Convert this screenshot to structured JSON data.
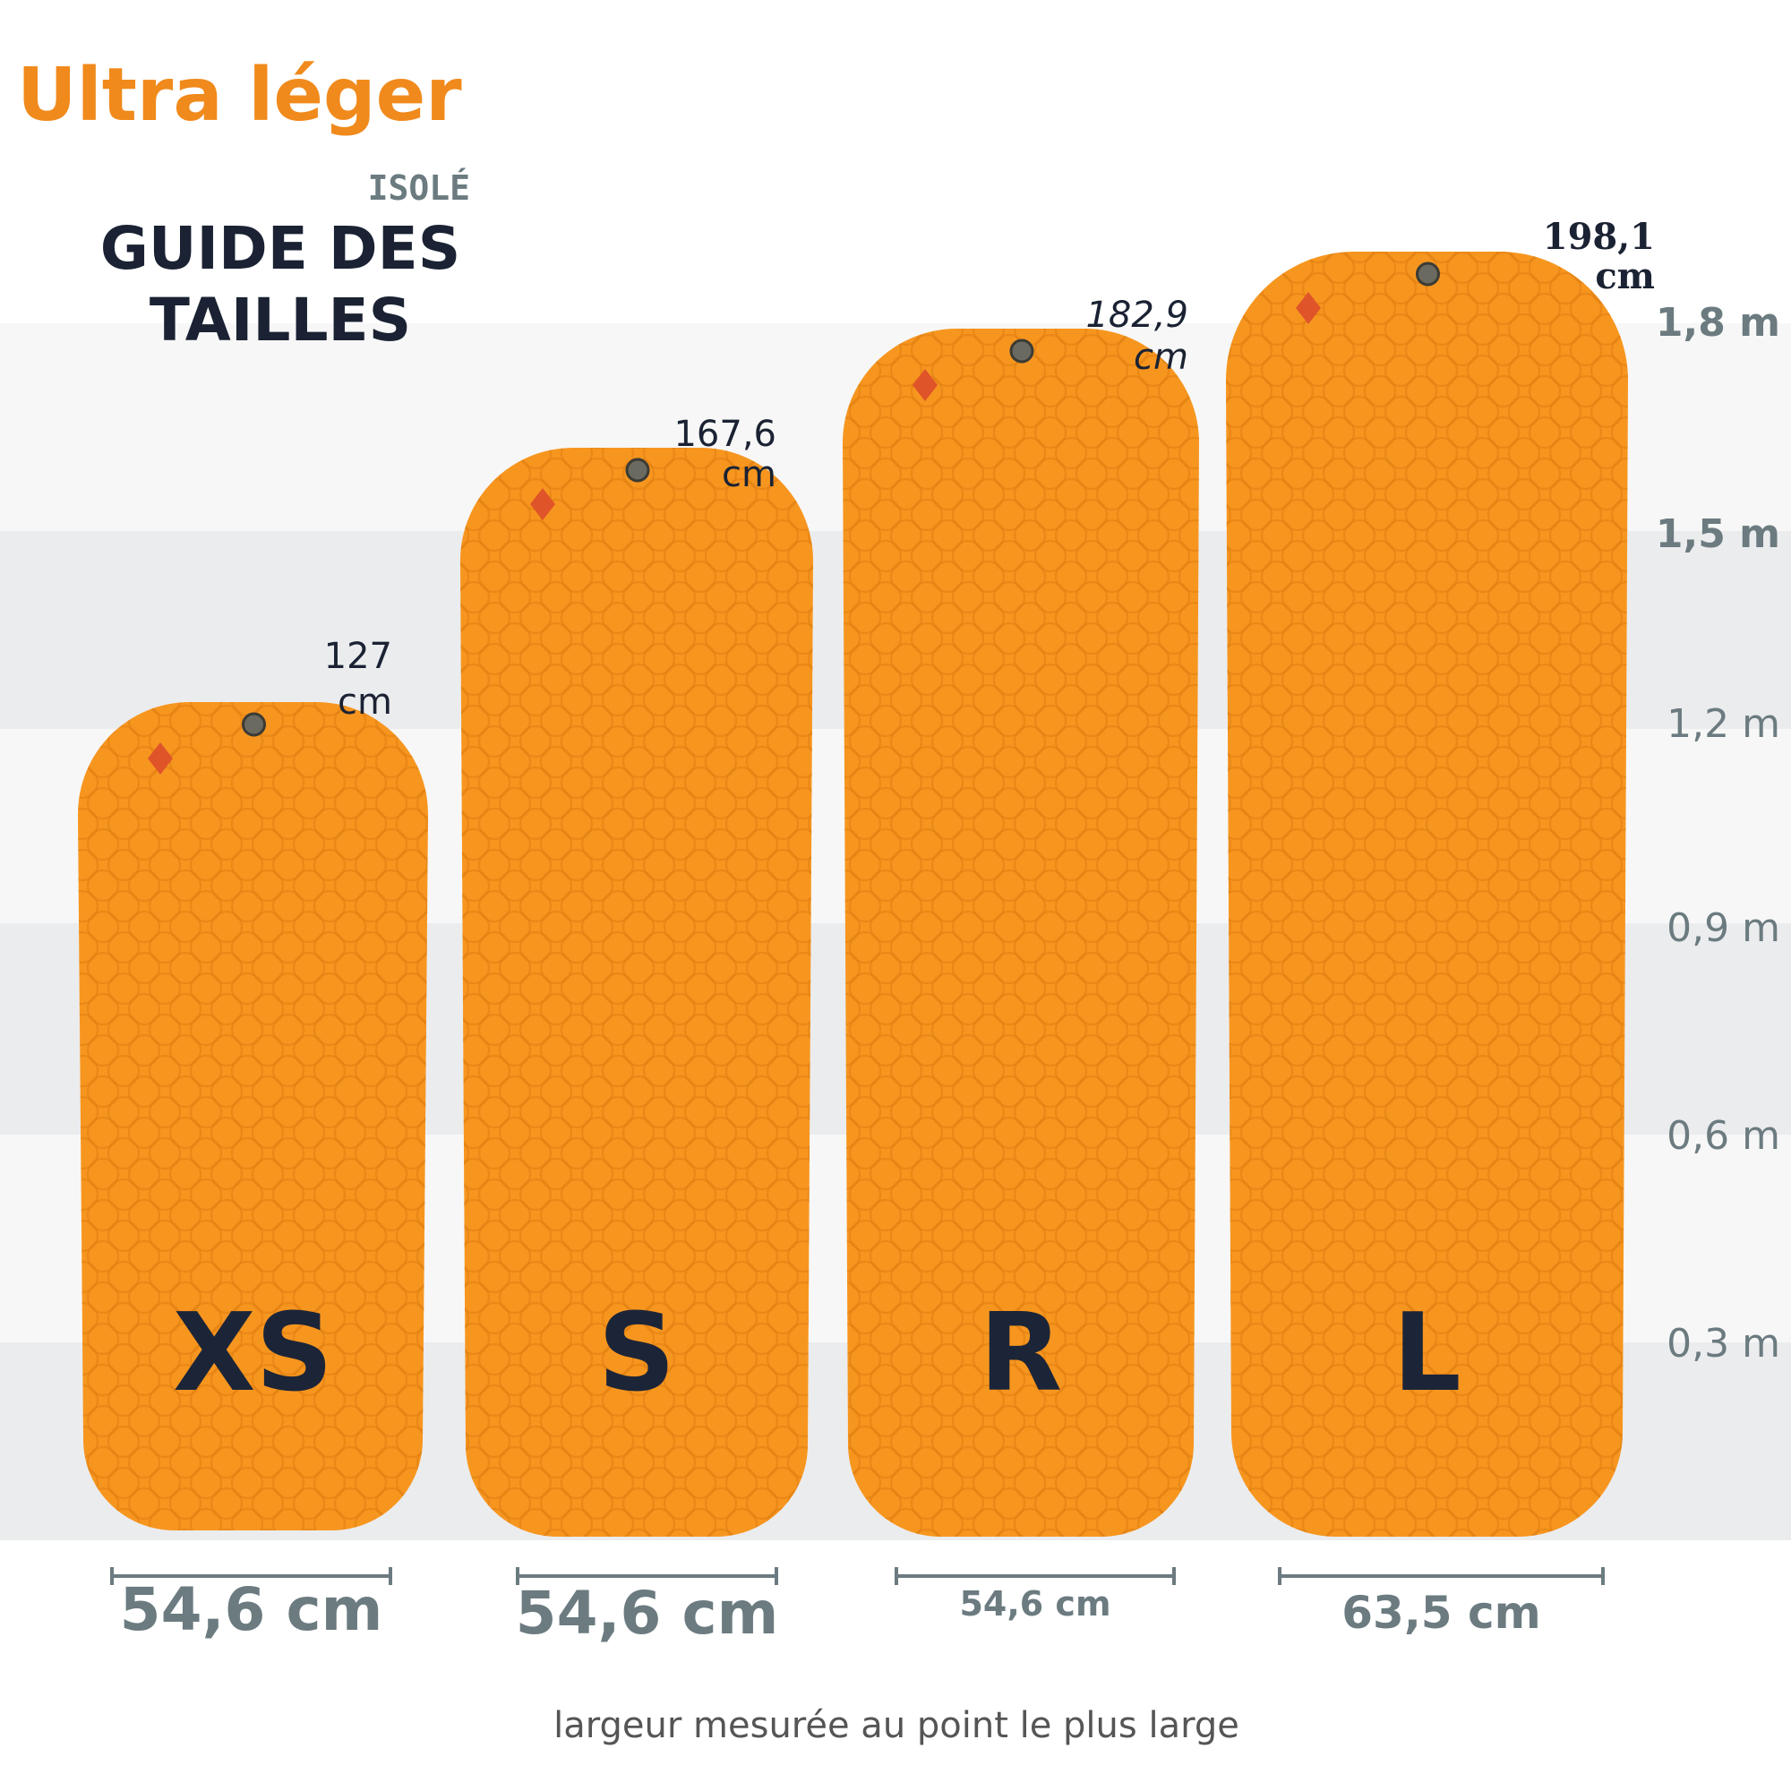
{
  "header": {
    "title": "Ultra léger",
    "subtitle": "ISOLÉ",
    "heading_lines": [
      "GUIDE DES",
      "TAILLES"
    ]
  },
  "scale_labels": [
    "1,8 m",
    "1,5 m",
    "1,2 m",
    "0,9 m",
    "0,6 m",
    "0,3 m"
  ],
  "mats": [
    {
      "size": "XS",
      "length_lines": [
        "127",
        "cm"
      ],
      "width": "54,6 cm"
    },
    {
      "size": "S",
      "length_lines": [
        "167,6",
        "cm"
      ],
      "width": "54,6 cm"
    },
    {
      "size": "R",
      "length_lines": [
        "182,9",
        "cm"
      ],
      "width": "54,6 cm"
    },
    {
      "size": "L",
      "length_lines": [
        "198,1",
        "cm"
      ],
      "width": "63,5 cm"
    }
  ],
  "footnote": "largeur mesurée au point le plus large"
}
